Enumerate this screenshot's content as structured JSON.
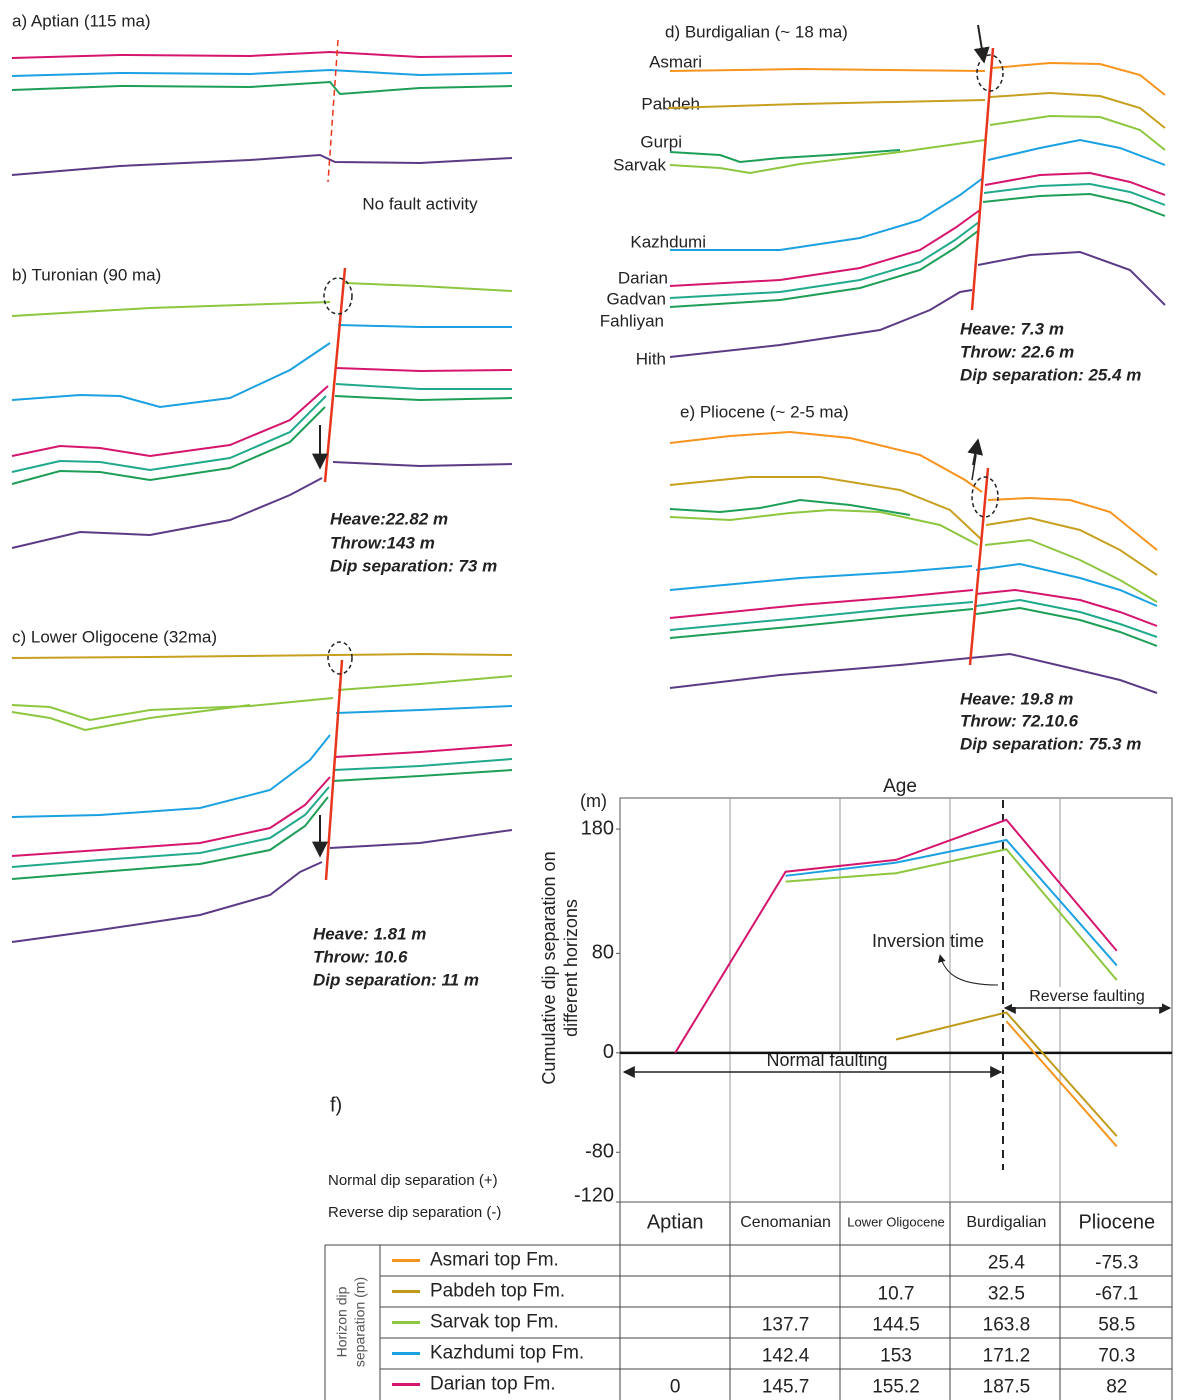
{
  "panels": [
    {
      "title": "a) Aptian (115 ma)",
      "note": "No fault activity"
    },
    {
      "title": "b) Turonian (90 ma)",
      "annotations": [
        "Heave:22.82 m",
        "Throw:143 m",
        "Dip separation: 73 m"
      ]
    },
    {
      "title": "c) Lower Oligocene (32ma)",
      "annotations": [
        "Heave: 1.81 m",
        "Throw: 10.6",
        "Dip separation: 11 m"
      ]
    },
    {
      "title": "d) Burdigalian (~ 18 ma)",
      "horizons": [
        "Asmari",
        "Pabdeh",
        "Gurpi",
        "Sarvak",
        "Kazhdumi",
        "Darian",
        "Gadvan",
        "Fahliyan",
        "Hith"
      ],
      "annotations": [
        "Heave: 7.3 m",
        "Throw: 22.6 m",
        "Dip separation: 25.4 m"
      ]
    },
    {
      "title": "e) Pliocene (~ 2-5 ma)",
      "annotations": [
        "Heave: 19.8 m",
        "Throw: 72.10.6",
        "Dip separation:  75.3 m"
      ]
    }
  ],
  "chart_data": {
    "type": "line",
    "panel_label": "f)",
    "title": "Age",
    "y_unit": "(m)",
    "ylabel": [
      "Cumulative dip separation on",
      "different horizons"
    ],
    "categories": [
      "Aptian",
      "Cenomanian",
      "Lower Oligocene",
      "Burdigalian",
      "Pliocene"
    ],
    "series": [
      {
        "name": "Asmari top Fm.",
        "color": "#f7941d",
        "values": [
          null,
          null,
          null,
          25.4,
          -75.3
        ]
      },
      {
        "name": "Pabdeh top Fm.",
        "color": "#c09a1a",
        "values": [
          null,
          null,
          10.7,
          32.5,
          -67.1
        ]
      },
      {
        "name": "Sarvak top Fm.",
        "color": "#8dc63f",
        "values": [
          null,
          137.7,
          144.5,
          163.8,
          58.5
        ]
      },
      {
        "name": "Kazhdumi top Fm.",
        "color": "#1ba1e2",
        "values": [
          null,
          142.4,
          153,
          171.2,
          70.3
        ]
      },
      {
        "name": "Darian top Fm.",
        "color": "#d6156e",
        "values": [
          0,
          145.7,
          155.2,
          187.5,
          82
        ]
      }
    ],
    "ylim": [
      -120,
      205
    ],
    "yticks": [
      180,
      80,
      0,
      -80,
      -120
    ],
    "annotations": [
      "Inversion time",
      "Normal faulting",
      "Reverse faulting"
    ],
    "sign_notes": [
      "Normal dip separation (+)",
      "Reverse dip separation (-)"
    ],
    "table_label": [
      "Horizon dip",
      "separation (m)"
    ]
  }
}
